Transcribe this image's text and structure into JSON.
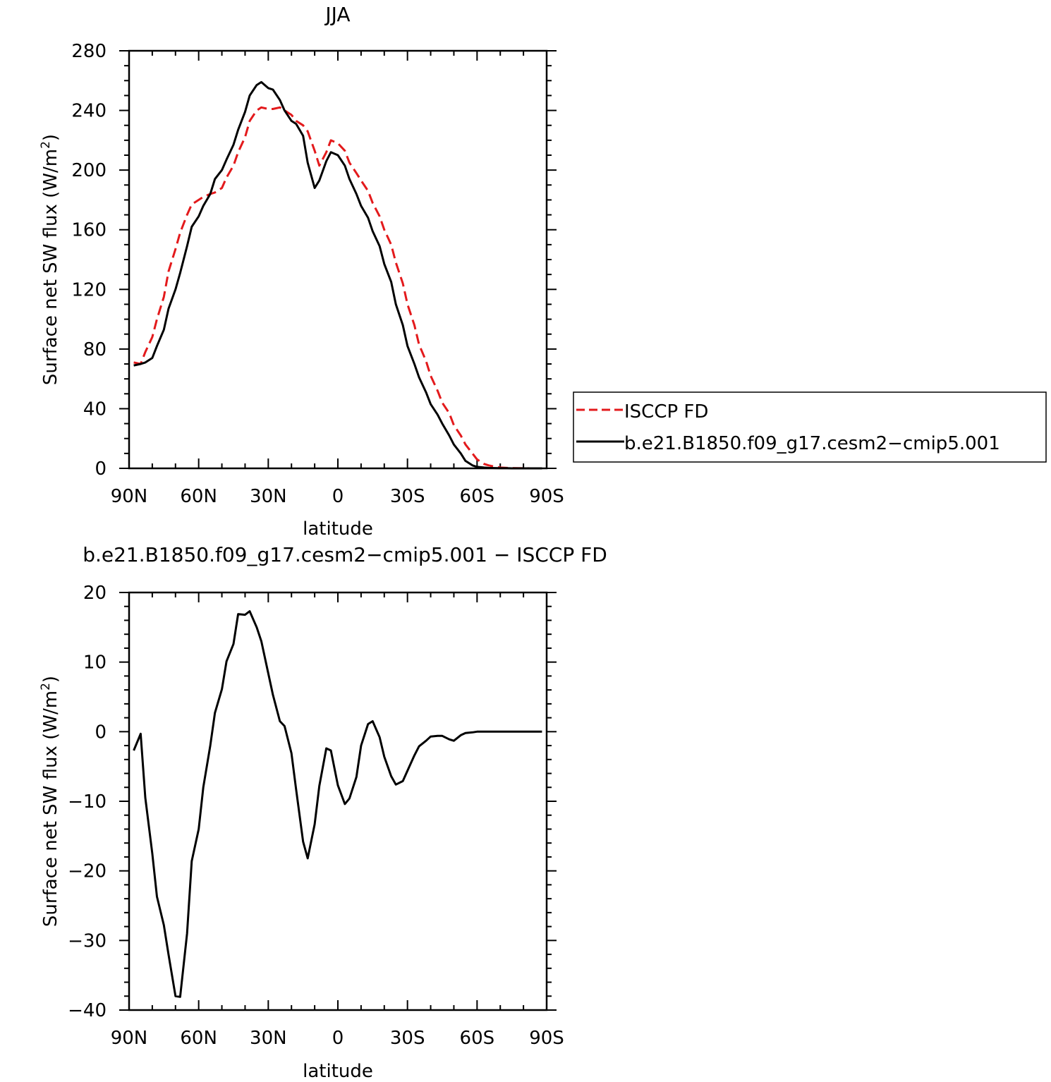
{
  "chart_data": [
    {
      "type": "line",
      "title": "JJA",
      "xlabel": "latitude",
      "ylabel": "Surface net SW flux (W/m²)",
      "ylabel_parts": [
        "Surface net SW flux (W/m",
        "2",
        ")"
      ],
      "xlim": [
        90,
        -90
      ],
      "ylim": [
        0,
        280
      ],
      "x_ticks": [
        90,
        60,
        30,
        0,
        -30,
        -60,
        -90
      ],
      "x_tick_labels": [
        "90N",
        "60N",
        "30N",
        "0",
        "30S",
        "60S",
        "90S"
      ],
      "y_ticks": [
        0,
        40,
        80,
        120,
        160,
        200,
        240,
        280
      ],
      "y_tick_labels": [
        "0",
        "40",
        "80",
        "120",
        "160",
        "200",
        "240",
        "280"
      ],
      "legend": {
        "placement": "right, outside plot"
      },
      "series": [
        {
          "name": "ISCCP FD",
          "color": "#e31a1c",
          "dash": "dashed",
          "x": [
            88,
            85,
            83,
            80,
            78,
            75,
            73,
            70,
            68,
            65,
            63,
            60,
            58,
            55,
            53,
            50,
            48,
            45,
            43,
            40,
            38,
            35,
            33,
            30,
            28,
            25,
            23,
            20,
            18,
            15,
            13,
            10,
            8,
            5,
            3,
            0,
            -3,
            -5,
            -8,
            -10,
            -13,
            -15,
            -18,
            -20,
            -23,
            -25,
            -28,
            -30,
            -33,
            -35,
            -38,
            -40,
            -43,
            -45,
            -48,
            -50,
            -53,
            -55,
            -58,
            -60,
            -63,
            -65,
            -68,
            -70,
            -73,
            -75,
            -78,
            -80,
            -83,
            -85,
            -88
          ],
          "y": [
            71,
            70,
            78,
            88,
            100,
            115,
            132,
            147,
            158,
            170,
            177,
            180,
            182,
            184,
            185,
            188,
            195,
            203,
            212,
            222,
            233,
            240,
            242,
            241,
            241,
            242,
            240,
            237,
            233,
            230,
            226,
            213,
            203,
            212,
            220,
            218,
            213,
            205,
            198,
            193,
            186,
            178,
            169,
            160,
            150,
            138,
            124,
            110,
            96,
            83,
            72,
            62,
            52,
            44,
            37,
            29,
            22,
            16,
            10,
            6,
            3,
            2,
            1,
            0.5,
            0.3,
            0.2,
            0.1,
            0.1,
            0,
            0,
            0
          ]
        },
        {
          "name": "b.e21.B1850.f09_g17.cesm2−cmip5.001",
          "color": "#000000",
          "dash": "solid",
          "x": [
            88,
            85,
            83,
            80,
            78,
            75,
            73,
            70,
            68,
            65,
            63,
            60,
            58,
            55,
            53,
            50,
            48,
            45,
            43,
            40,
            38,
            35,
            33,
            30,
            28,
            25,
            23,
            20,
            18,
            15,
            13,
            10,
            8,
            5,
            3,
            0,
            -3,
            -5,
            -8,
            -10,
            -13,
            -15,
            -18,
            -20,
            -23,
            -25,
            -28,
            -30,
            -33,
            -35,
            -38,
            -40,
            -43,
            -45,
            -48,
            -50,
            -53,
            -55,
            -58,
            -60,
            -63,
            -65,
            -68,
            -70,
            -73,
            -75,
            -78,
            -80,
            -83,
            -85,
            -88
          ],
          "y": [
            69,
            70,
            71,
            74,
            82,
            93,
            107,
            120,
            131,
            149,
            162,
            169,
            176,
            184,
            194,
            200,
            207,
            217,
            227,
            239,
            250,
            257,
            259,
            255,
            254,
            247,
            240,
            233,
            231,
            223,
            205,
            188,
            193,
            206,
            212,
            210,
            203,
            194,
            184,
            176,
            168,
            159,
            149,
            137,
            125,
            110,
            96,
            82,
            70,
            61,
            51,
            43,
            36,
            30,
            22,
            16,
            10,
            5,
            2,
            1,
            0.5,
            0.3,
            0.2,
            0.1,
            0.1,
            0,
            0,
            0,
            0,
            0,
            0
          ]
        }
      ]
    },
    {
      "type": "line",
      "title": "b.e21.B1850.f09_g17.cesm2−cmip5.001 − ISCCP FD",
      "xlabel": "latitude",
      "ylabel": "Surface net SW flux (W/m²)",
      "ylabel_parts": [
        "Surface net SW flux (W/m",
        "2",
        ")"
      ],
      "xlim": [
        90,
        -90
      ],
      "ylim": [
        -40,
        20
      ],
      "x_ticks": [
        90,
        60,
        30,
        0,
        -30,
        -60,
        -90
      ],
      "x_tick_labels": [
        "90N",
        "60N",
        "30N",
        "0",
        "30S",
        "60S",
        "90S"
      ],
      "y_ticks": [
        -40,
        -30,
        -20,
        -10,
        0,
        10,
        20
      ],
      "y_tick_labels": [
        "−40",
        "−30",
        "−20",
        "−10",
        "0",
        "10",
        "20"
      ],
      "series": [
        {
          "color": "#000000",
          "dash": "solid",
          "x": [
            88,
            85,
            83,
            80,
            78,
            75,
            73,
            70,
            68,
            65,
            63,
            60,
            58,
            55,
            53,
            50,
            48,
            45,
            43,
            40,
            38,
            35,
            33,
            30,
            28,
            25,
            23,
            20,
            18,
            15,
            13,
            10,
            8,
            5,
            3,
            0,
            -3,
            -5,
            -8,
            -10,
            -13,
            -15,
            -18,
            -20,
            -23,
            -25,
            -28,
            -30,
            -33,
            -35,
            -38,
            -40,
            -43,
            -45,
            -48,
            -50,
            -53,
            -55,
            -58,
            -60,
            -63,
            -65,
            -68,
            -70,
            -73,
            -75,
            -78,
            -80,
            -83,
            -85,
            -88
          ],
          "y": [
            -2.7,
            -0.3,
            -9.5,
            -17.5,
            -23.7,
            -27.8,
            -32.0,
            -38.0,
            -38.1,
            -29.0,
            -18.6,
            -14.0,
            -8.0,
            -2.0,
            2.7,
            6.1,
            10.1,
            12.6,
            16.9,
            16.8,
            17.3,
            15.0,
            13.0,
            8.4,
            5.3,
            1.5,
            0.8,
            -3.1,
            -8.3,
            -15.8,
            -18.2,
            -13.3,
            -7.8,
            -2.4,
            -2.7,
            -7.7,
            -10.4,
            -9.6,
            -6.5,
            -2.0,
            1.1,
            1.5,
            -0.8,
            -3.6,
            -6.4,
            -7.6,
            -7.1,
            -5.6,
            -3.4,
            -2.1,
            -1.3,
            -0.7,
            -0.6,
            -0.6,
            -1.1,
            -1.3,
            -0.5,
            -0.2,
            -0.1,
            0,
            0,
            0,
            0,
            0,
            0,
            0,
            0,
            0,
            0,
            0,
            0
          ]
        }
      ]
    }
  ]
}
